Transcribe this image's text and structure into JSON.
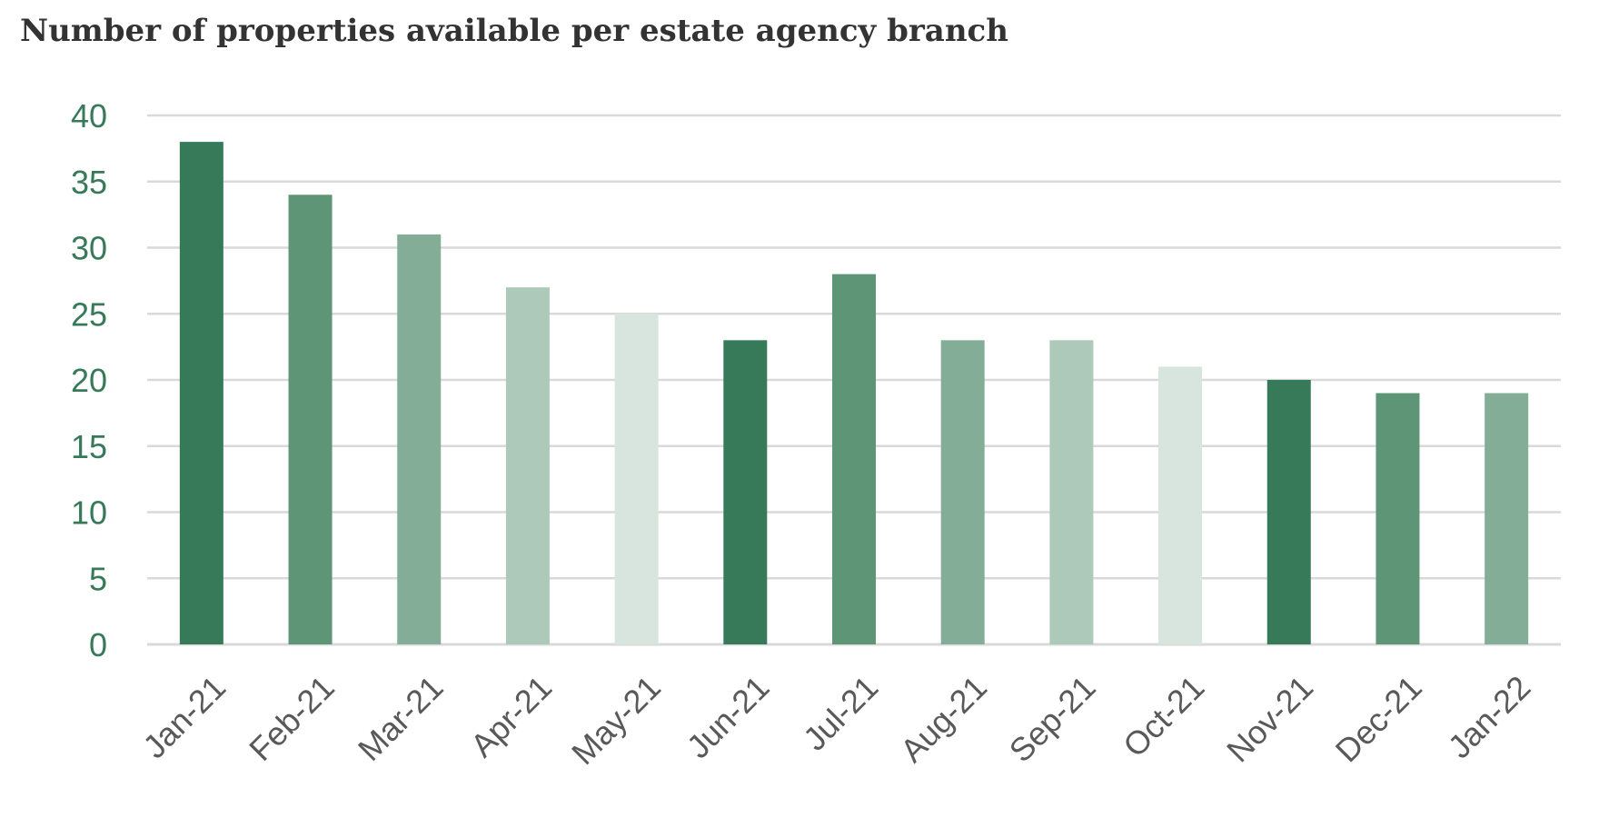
{
  "title": "Number of properties available per estate agency branch",
  "chart_data": {
    "type": "bar",
    "categories": [
      "Jan-21",
      "Feb-21",
      "Mar-21",
      "Apr-21",
      "May-21",
      "Jun-21",
      "Jul-21",
      "Aug-21",
      "Sep-21",
      "Oct-21",
      "Nov-21",
      "Dec-21",
      "Jan-22"
    ],
    "values": [
      38,
      34,
      31,
      27,
      25,
      23,
      28,
      23,
      23,
      21,
      20,
      19,
      19
    ],
    "bar_colors": [
      "#377a59",
      "#5e9576",
      "#83ad96",
      "#adc9b9",
      "#d8e5de",
      "#377a59",
      "#5e9576",
      "#83ad96",
      "#adc9b9",
      "#d8e5de",
      "#377a59",
      "#5e9576",
      "#83ad96"
    ],
    "title": "Number of properties available per estate agency branch",
    "xlabel": "",
    "ylabel": "",
    "ylim": [
      0,
      40
    ],
    "yticks": [
      0,
      5,
      10,
      15,
      20,
      25,
      30,
      35,
      40
    ],
    "grid": true,
    "legend": "none",
    "colors": {
      "ytick_text": "#377a59",
      "xtick_text": "#595959",
      "gridline": "#d9d9d9"
    }
  }
}
